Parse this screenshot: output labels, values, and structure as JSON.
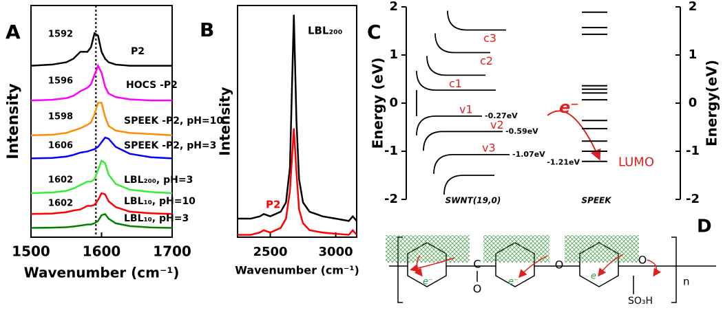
{
  "chart_data": [
    {
      "type": "line",
      "panel": "A",
      "xlabel": "Wavenumber (cm⁻¹)",
      "ylabel": "Intensity",
      "xlim": [
        1500,
        1700
      ],
      "xticks": [
        1500,
        1600,
        1700
      ],
      "ylim": [
        0,
        100
      ],
      "reference_line_x": 1592,
      "x": [
        1500,
        1530,
        1550,
        1560,
        1570,
        1580,
        1585,
        1590,
        1595,
        1600,
        1605,
        1610,
        1620,
        1640,
        1670,
        1700
      ],
      "series": [
        {
          "name": "P2",
          "peak_label": "1592",
          "color": "#000000",
          "values": [
            74,
            74.5,
            75.5,
            77,
            80,
            80,
            82,
            88,
            87,
            80,
            77,
            75.5,
            74.5,
            74,
            74,
            74
          ]
        },
        {
          "name": "HOCS -P2",
          "peak_label": "1596",
          "color": "#ff00ff",
          "values": [
            59,
            59.3,
            60,
            61,
            63,
            64.5,
            66,
            70,
            74,
            71,
            65,
            62,
            60.5,
            59.5,
            59,
            59
          ]
        },
        {
          "name": "SPEEK -P2, pH=10",
          "peak_label": "1598",
          "color": "#ff8c00",
          "values": [
            44,
            44.2,
            45,
            46,
            47,
            48.5,
            49.5,
            53,
            58,
            58,
            52,
            48,
            46,
            45,
            44.5,
            44
          ]
        },
        {
          "name": "SPEEK -P2, pH=3",
          "peak_label": "1606",
          "color": "#0000ff",
          "values": [
            34,
            34.2,
            34.8,
            35.5,
            36.5,
            37,
            37.5,
            38,
            39,
            41,
            43,
            42.5,
            39,
            36,
            34.5,
            34
          ]
        },
        {
          "name": "LBL₂₀₀, pH=3",
          "peak_label": "1602",
          "color": "#33ee33",
          "values": [
            19,
            19.3,
            20,
            21,
            22.5,
            24,
            24,
            25,
            29,
            33,
            32,
            27,
            23,
            20.5,
            19.5,
            19
          ]
        },
        {
          "name": "LBL₁₀, pH=10",
          "peak_label": "1602",
          "color": "#ff0000",
          "values": [
            10,
            10.2,
            10.8,
            11.5,
            12,
            13.5,
            13.5,
            14,
            16,
            19,
            18.5,
            15.5,
            13,
            11,
            10.3,
            10
          ]
        },
        {
          "name": "LBL₁₀, pH=3",
          "color": "#008000",
          "values": [
            4,
            4.1,
            4.3,
            4.6,
            5,
            5.5,
            5.5,
            6,
            7,
            9.5,
            10,
            8,
            6,
            4.8,
            4.2,
            4
          ]
        }
      ]
    },
    {
      "type": "line",
      "panel": "B",
      "xlabel": "Wavenumber (cm⁻¹)",
      "ylabel": "Intensity",
      "xlim": [
        2250,
        3160
      ],
      "xticks": [
        2500,
        3000
      ],
      "ylim": [
        0,
        100
      ],
      "x": [
        2250,
        2350,
        2420,
        2450,
        2500,
        2580,
        2620,
        2650,
        2680,
        2700,
        2720,
        2750,
        2800,
        2900,
        3000,
        3100,
        3130,
        3160
      ],
      "series": [
        {
          "name": "LBL₂₀₀",
          "color": "#000000",
          "values": [
            8,
            8,
            9,
            10,
            9,
            11,
            15,
            30,
            96,
            50,
            25,
            15,
            11,
            9,
            8,
            7,
            9,
            7
          ]
        },
        {
          "name": "P2",
          "color": "#ff0000",
          "values": [
            1,
            1,
            2,
            3,
            2,
            4,
            8,
            20,
            47,
            28,
            12,
            6,
            3,
            2,
            1.5,
            1,
            3,
            1
          ]
        }
      ]
    },
    {
      "type": "energy_levels",
      "panel": "C",
      "ylabel": "Energy (eV)",
      "y2label": "Energy(eV)",
      "ylim": [
        -2,
        2
      ],
      "yticks": [
        -2,
        -1,
        0,
        1,
        2
      ],
      "y2lim": [
        -2,
        2
      ],
      "y2ticks": [
        -2,
        -1,
        0,
        1,
        2
      ],
      "swnt_name": "SWNT(19,0)",
      "speek_name": "SPEEK",
      "electron": "e⁻",
      "swnt_conduction": [
        0.27,
        0.58,
        1.05,
        1.52
      ],
      "swnt_conduction_labels": [
        null,
        "c1",
        "c2",
        "c3"
      ],
      "swnt_valence": [
        -0.27,
        -0.59,
        -1.07,
        -1.5
      ],
      "swnt_valence_labels": [
        "v1",
        "v2",
        "v3",
        null
      ],
      "swnt_valence_energy_labels": [
        "-0.27eV",
        "-0.59eV",
        "-1.07eV",
        null
      ],
      "speek_levels": [
        1.89,
        1.57,
        1.43,
        0.36,
        0.29,
        0.21,
        0.07,
        -0.36,
        -0.53,
        -0.79,
        -1.0
      ],
      "lumo": -1.21,
      "lumo_label": "-1.21eV",
      "lumo_name": "LUMO"
    }
  ],
  "panel_d": {
    "label": "D",
    "atoms": [
      "C",
      "O",
      "O",
      "O",
      "SO₃H"
    ],
    "repeat": "n",
    "electron": "e⁻"
  }
}
